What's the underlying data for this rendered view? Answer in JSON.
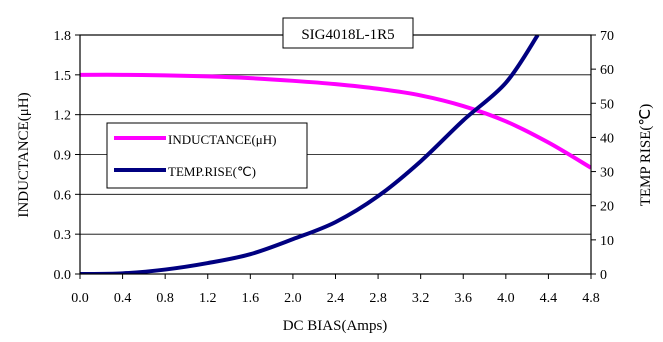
{
  "chart_data": {
    "type": "line",
    "title": "SIG4018L-1R5",
    "xlabel": "DC BIAS(Amps)",
    "ylabel": "INDUCTANCE(μH)",
    "y2label": "TEMP RISE(℃)",
    "xlim": [
      0,
      4.8
    ],
    "ylim": [
      0,
      1.8
    ],
    "y2lim": [
      0,
      70
    ],
    "x_ticks": [
      "0.0",
      "0.4",
      "0.8",
      "1.2",
      "1.6",
      "2.0",
      "2.4",
      "2.8",
      "3.2",
      "3.6",
      "4.0",
      "4.4",
      "4.8"
    ],
    "y_ticks": [
      "0.0",
      "0.3",
      "0.6",
      "0.9",
      "1.2",
      "1.5",
      "1.8"
    ],
    "y2_ticks": [
      "0",
      "10",
      "20",
      "30",
      "40",
      "50",
      "60",
      "70"
    ],
    "grid": "horizontal",
    "legend_position": "left-middle",
    "series": [
      {
        "name": "INDUCTANCE(μH)",
        "axis": "left",
        "color": "#ff00ff",
        "points": [
          [
            0,
            1.5
          ],
          [
            0.4,
            1.5
          ],
          [
            0.8,
            1.496
          ],
          [
            1.2,
            1.488
          ],
          [
            1.6,
            1.475
          ],
          [
            2.0,
            1.455
          ],
          [
            2.4,
            1.43
          ],
          [
            2.8,
            1.395
          ],
          [
            3.2,
            1.345
          ],
          [
            3.6,
            1.265
          ],
          [
            4.0,
            1.15
          ],
          [
            4.4,
            0.99
          ],
          [
            4.8,
            0.8
          ]
        ]
      },
      {
        "name": "TEMP.RISE(℃)",
        "axis": "right",
        "color": "#000080",
        "points": [
          [
            0,
            0
          ],
          [
            0.4,
            0.2
          ],
          [
            0.8,
            1.3
          ],
          [
            1.2,
            3.2
          ],
          [
            1.6,
            5.8
          ],
          [
            2.0,
            10.2
          ],
          [
            2.4,
            15.2
          ],
          [
            2.8,
            22.8
          ],
          [
            3.2,
            33
          ],
          [
            3.6,
            45
          ],
          [
            4.0,
            56
          ],
          [
            4.3,
            70
          ]
        ]
      }
    ]
  }
}
